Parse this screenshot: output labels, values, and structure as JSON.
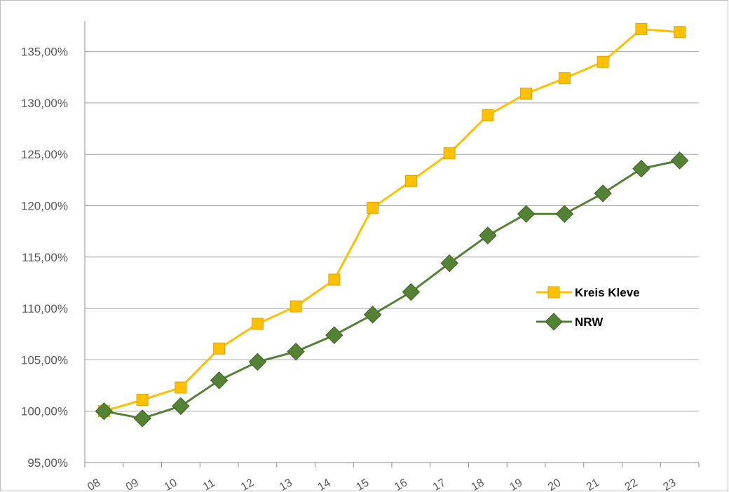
{
  "chart_data": {
    "type": "line",
    "title": "",
    "xlabel": "",
    "ylabel": "",
    "categories": [
      "08",
      "09",
      "10",
      "11",
      "12",
      "13",
      "14",
      "15",
      "16",
      "17",
      "18",
      "19",
      "20",
      "21",
      "22",
      "23"
    ],
    "y_tick_labels": [
      "95,00%",
      "100,00%",
      "105,00%",
      "110,00%",
      "115,00%",
      "120,00%",
      "125,00%",
      "130,00%",
      "135,00%"
    ],
    "y_ticks": [
      95,
      100,
      105,
      110,
      115,
      120,
      125,
      130,
      135
    ],
    "ylim": [
      95,
      140
    ],
    "grid": "horizontal",
    "legend_position": "right",
    "series": [
      {
        "name": "Kreis Kleve",
        "color": "#ffc000",
        "marker": "square",
        "values": [
          100.0,
          101.1,
          102.3,
          106.1,
          108.5,
          110.2,
          112.8,
          119.8,
          122.4,
          125.1,
          128.8,
          130.9,
          132.4,
          134.0,
          137.2,
          136.9
        ]
      },
      {
        "name": "NRW",
        "color": "#548235",
        "marker": "diamond",
        "values": [
          100.0,
          99.3,
          100.5,
          103.0,
          104.8,
          105.8,
          107.4,
          109.4,
          111.6,
          114.4,
          117.1,
          119.2,
          119.2,
          121.2,
          123.6,
          124.4
        ]
      }
    ]
  }
}
